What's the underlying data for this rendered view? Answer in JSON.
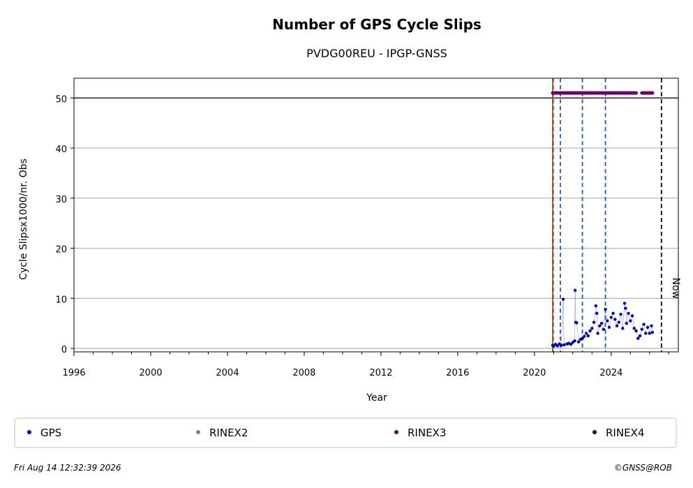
{
  "chart_data": {
    "type": "scatter",
    "title": "Number of GPS Cycle Slips",
    "subtitle": "PVDG00REU - IPGP-GNSS",
    "xlabel": "Year",
    "ylabel": "Cycle Slipsx1000/nr. Obs",
    "xlim": [
      1996,
      2027.5
    ],
    "ylim": [
      0,
      52
    ],
    "x_ticks": [
      1996,
      2000,
      2004,
      2008,
      2012,
      2016,
      2020,
      2024
    ],
    "y_ticks": [
      0,
      10,
      20,
      30,
      40,
      50
    ],
    "grid": "horizontal",
    "threshold_line": 50,
    "vlines": [
      {
        "x": 2020.95,
        "style": "solid",
        "color": "#2e8b2e"
      },
      {
        "x": 2020.98,
        "style": "dashed",
        "color": "#dd2222"
      },
      {
        "x": 2021.35,
        "style": "dashed",
        "color": "#1f5fa8"
      },
      {
        "x": 2022.5,
        "style": "dashed",
        "color": "#1f5fa8"
      },
      {
        "x": 2023.7,
        "style": "dashed",
        "color": "#1f5fa8"
      },
      {
        "x": 2026.62,
        "style": "dashed",
        "color": "#000000",
        "label": "Now"
      }
    ],
    "series": [
      {
        "name": "GPS",
        "color": "#0000a0",
        "points": [
          [
            2020.95,
            0.6
          ],
          [
            2021.0,
            0.4
          ],
          [
            2021.1,
            0.8
          ],
          [
            2021.2,
            0.5
          ],
          [
            2021.3,
            0.9
          ],
          [
            2021.4,
            0.6
          ],
          [
            2021.5,
            9.8
          ],
          [
            2021.55,
            0.7
          ],
          [
            2021.7,
            0.9
          ],
          [
            2021.8,
            1.0
          ],
          [
            2021.9,
            0.8
          ],
          [
            2022.0,
            1.2
          ],
          [
            2022.1,
            1.5
          ],
          [
            2022.12,
            11.6
          ],
          [
            2022.15,
            5.2
          ],
          [
            2022.2,
            5.1
          ],
          [
            2022.3,
            1.3
          ],
          [
            2022.4,
            1.8
          ],
          [
            2022.5,
            2.0
          ],
          [
            2022.6,
            2.4
          ],
          [
            2022.7,
            3.0
          ],
          [
            2022.8,
            2.5
          ],
          [
            2022.9,
            3.5
          ],
          [
            2023.0,
            4.0
          ],
          [
            2023.1,
            5.2
          ],
          [
            2023.2,
            8.5
          ],
          [
            2023.25,
            7.0
          ],
          [
            2023.3,
            3.0
          ],
          [
            2023.4,
            4.5
          ],
          [
            2023.5,
            5.0
          ],
          [
            2023.6,
            3.8
          ],
          [
            2023.7,
            7.8
          ],
          [
            2023.8,
            5.5
          ],
          [
            2023.9,
            4.2
          ],
          [
            2024.0,
            6.2
          ],
          [
            2024.1,
            7.0
          ],
          [
            2024.2,
            5.8
          ],
          [
            2024.3,
            4.5
          ],
          [
            2024.4,
            5.2
          ],
          [
            2024.5,
            6.8
          ],
          [
            2024.6,
            4.0
          ],
          [
            2024.7,
            9.0
          ],
          [
            2024.75,
            8.0
          ],
          [
            2024.8,
            5.0
          ],
          [
            2024.9,
            7.0
          ],
          [
            2025.0,
            5.5
          ],
          [
            2025.1,
            6.5
          ],
          [
            2025.2,
            4.0
          ],
          [
            2025.3,
            3.5
          ],
          [
            2025.4,
            2.0
          ],
          [
            2025.5,
            2.5
          ],
          [
            2025.6,
            3.8
          ],
          [
            2025.7,
            4.8
          ],
          [
            2025.8,
            3.0
          ],
          [
            2025.9,
            4.2
          ],
          [
            2026.0,
            3.0
          ],
          [
            2026.1,
            4.5
          ],
          [
            2026.15,
            3.2
          ]
        ]
      },
      {
        "name": "RINEX2",
        "color": "#7b7bbd",
        "points": []
      },
      {
        "name": "RINEX3",
        "color": "#6b006b",
        "segments": [
          [
            2020.95,
            2025.3
          ],
          [
            2025.6,
            2026.15
          ]
        ],
        "y": 51
      },
      {
        "name": "RINEX4",
        "color": "#1a0026",
        "points": []
      }
    ],
    "legend": [
      "GPS",
      "RINEX2",
      "RINEX3",
      "RINEX4"
    ],
    "legend_placement": "bottom"
  },
  "footer": {
    "timestamp": "Fri Aug 14 12:32:39 2026",
    "credit": "©GNSS@ROB"
  }
}
